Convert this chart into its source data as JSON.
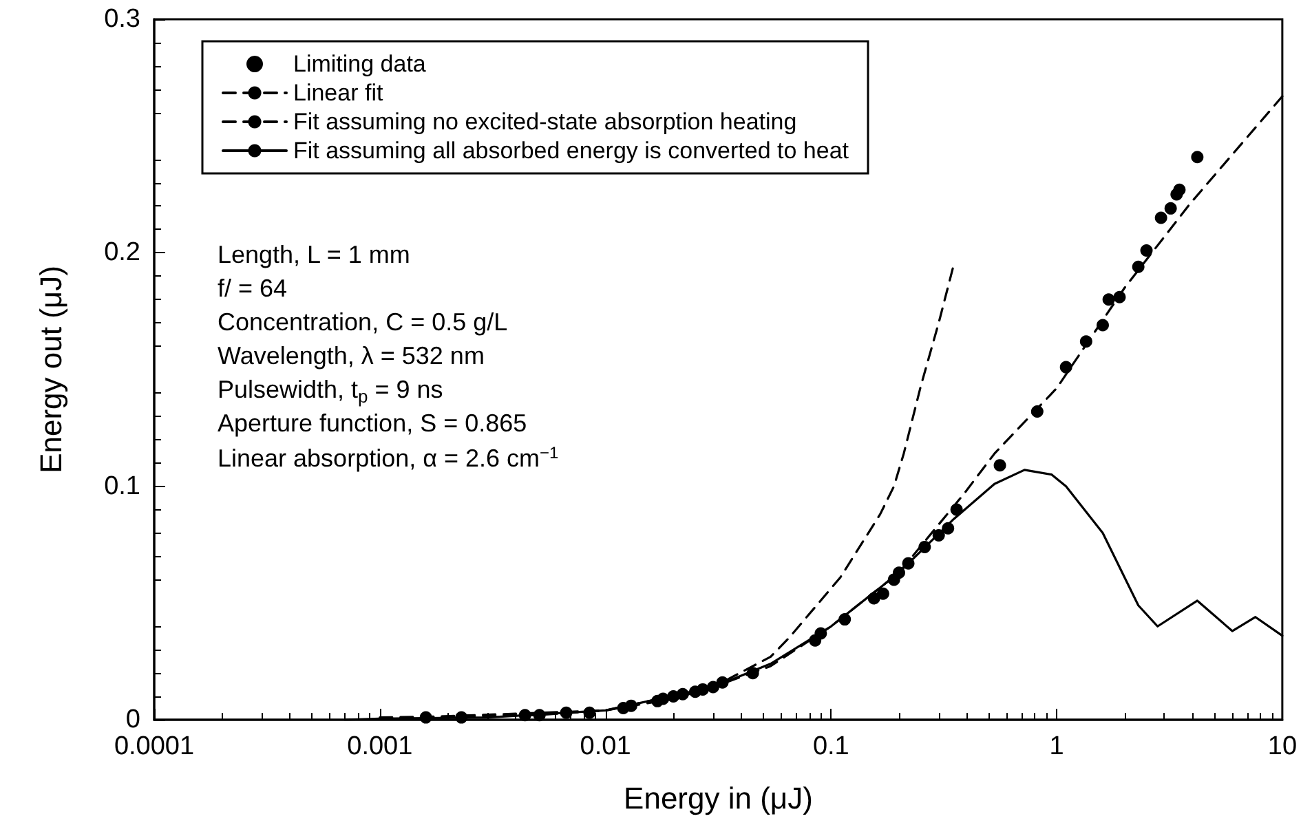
{
  "chart_data": {
    "type": "scatter",
    "xlabel": "Energy in (μJ)",
    "ylabel": "Energy out (μJ)",
    "log": "x",
    "xlim": [
      0.0001,
      10
    ],
    "xticks": [
      0.0001,
      0.001,
      0.01,
      0.1,
      1,
      10
    ],
    "ylim": [
      0,
      0.3
    ],
    "yticks": [
      {
        "value": 0,
        "label": "0"
      },
      0.1,
      0.2,
      0.3
    ],
    "grid": false,
    "legend": "top left",
    "annotations": [
      "Length, L = 1 mm",
      "f/ = 64",
      "Concentration, C = 0.5 g/L",
      "Wavelength, λ = 532 nm",
      "Pulsewidth, t$_{p}$ = 9 ns",
      "Aperture function, S = 0.865",
      "Linear absorption, α = 2.6 cm$^{−1}$"
    ],
    "series": [
      {
        "name": "Limiting data",
        "marker": "circle",
        "color": "#000000",
        "x": [
          0.0016,
          0.0023,
          0.0044,
          0.0051,
          0.0067,
          0.0085,
          0.012,
          0.013,
          0.017,
          0.018,
          0.02,
          0.022,
          0.025,
          0.027,
          0.03,
          0.033,
          0.045,
          0.085,
          0.09,
          0.115,
          0.155,
          0.17,
          0.19,
          0.2,
          0.22,
          0.26,
          0.3,
          0.33,
          0.36,
          0.56,
          0.82,
          1.1,
          1.35,
          1.6,
          1.7,
          1.9,
          2.3,
          2.5,
          2.9,
          3.2,
          3.5,
          3.4,
          4.2
        ],
        "values": [
          0.001,
          0.001,
          0.002,
          0.002,
          0.003,
          0.003,
          0.005,
          0.006,
          0.008,
          0.009,
          0.01,
          0.011,
          0.012,
          0.013,
          0.014,
          0.016,
          0.02,
          0.034,
          0.037,
          0.043,
          0.052,
          0.054,
          0.06,
          0.063,
          0.067,
          0.074,
          0.079,
          0.082,
          0.09,
          0.109,
          0.132,
          0.151,
          0.162,
          0.169,
          0.18,
          0.181,
          0.194,
          0.201,
          0.215,
          0.219,
          0.227,
          0.225,
          0.241
        ]
      },
      {
        "name": "Linear fit",
        "type": "line",
        "line_style": "dashed",
        "marker": "none",
        "color": "#000000",
        "x": [
          0.001,
          0.005,
          0.01,
          0.02,
          0.03,
          0.054,
          0.065,
          0.11,
          0.165,
          0.19,
          0.21,
          0.25,
          0.3,
          0.35
        ],
        "values": [
          0.001,
          0.002,
          0.004,
          0.009,
          0.014,
          0.027,
          0.035,
          0.061,
          0.088,
          0.1,
          0.114,
          0.143,
          0.17,
          0.195
        ]
      },
      {
        "name": "Fit assuming no excited-state absorption heating",
        "type": "line",
        "line_style": "dashed",
        "marker": "none",
        "color": "#000000",
        "x": [
          0.001,
          0.01,
          0.03,
          0.054,
          0.1,
          0.2,
          0.39,
          0.53,
          1,
          2,
          3.9,
          10
        ],
        "values": [
          0.0005,
          0.004,
          0.014,
          0.023,
          0.04,
          0.063,
          0.097,
          0.114,
          0.142,
          0.185,
          0.221,
          0.267
        ]
      },
      {
        "name": "Fit assuming all absorbed energy is converted to heat",
        "type": "line",
        "line_style": "solid",
        "marker": "none",
        "color": "#000000",
        "x": [
          0.0007,
          0.001,
          0.003,
          0.01,
          0.03,
          0.054,
          0.1,
          0.2,
          0.35,
          0.53,
          0.72,
          0.95,
          1.1,
          1.6,
          2.3,
          2.8,
          4.2,
          6,
          7.6,
          10
        ],
        "values": [
          0,
          0.0005,
          0.001,
          0.004,
          0.014,
          0.024,
          0.04,
          0.063,
          0.086,
          0.101,
          0.107,
          0.105,
          0.1,
          0.08,
          0.049,
          0.04,
          0.051,
          0.038,
          0.044,
          0.036
        ]
      }
    ]
  }
}
